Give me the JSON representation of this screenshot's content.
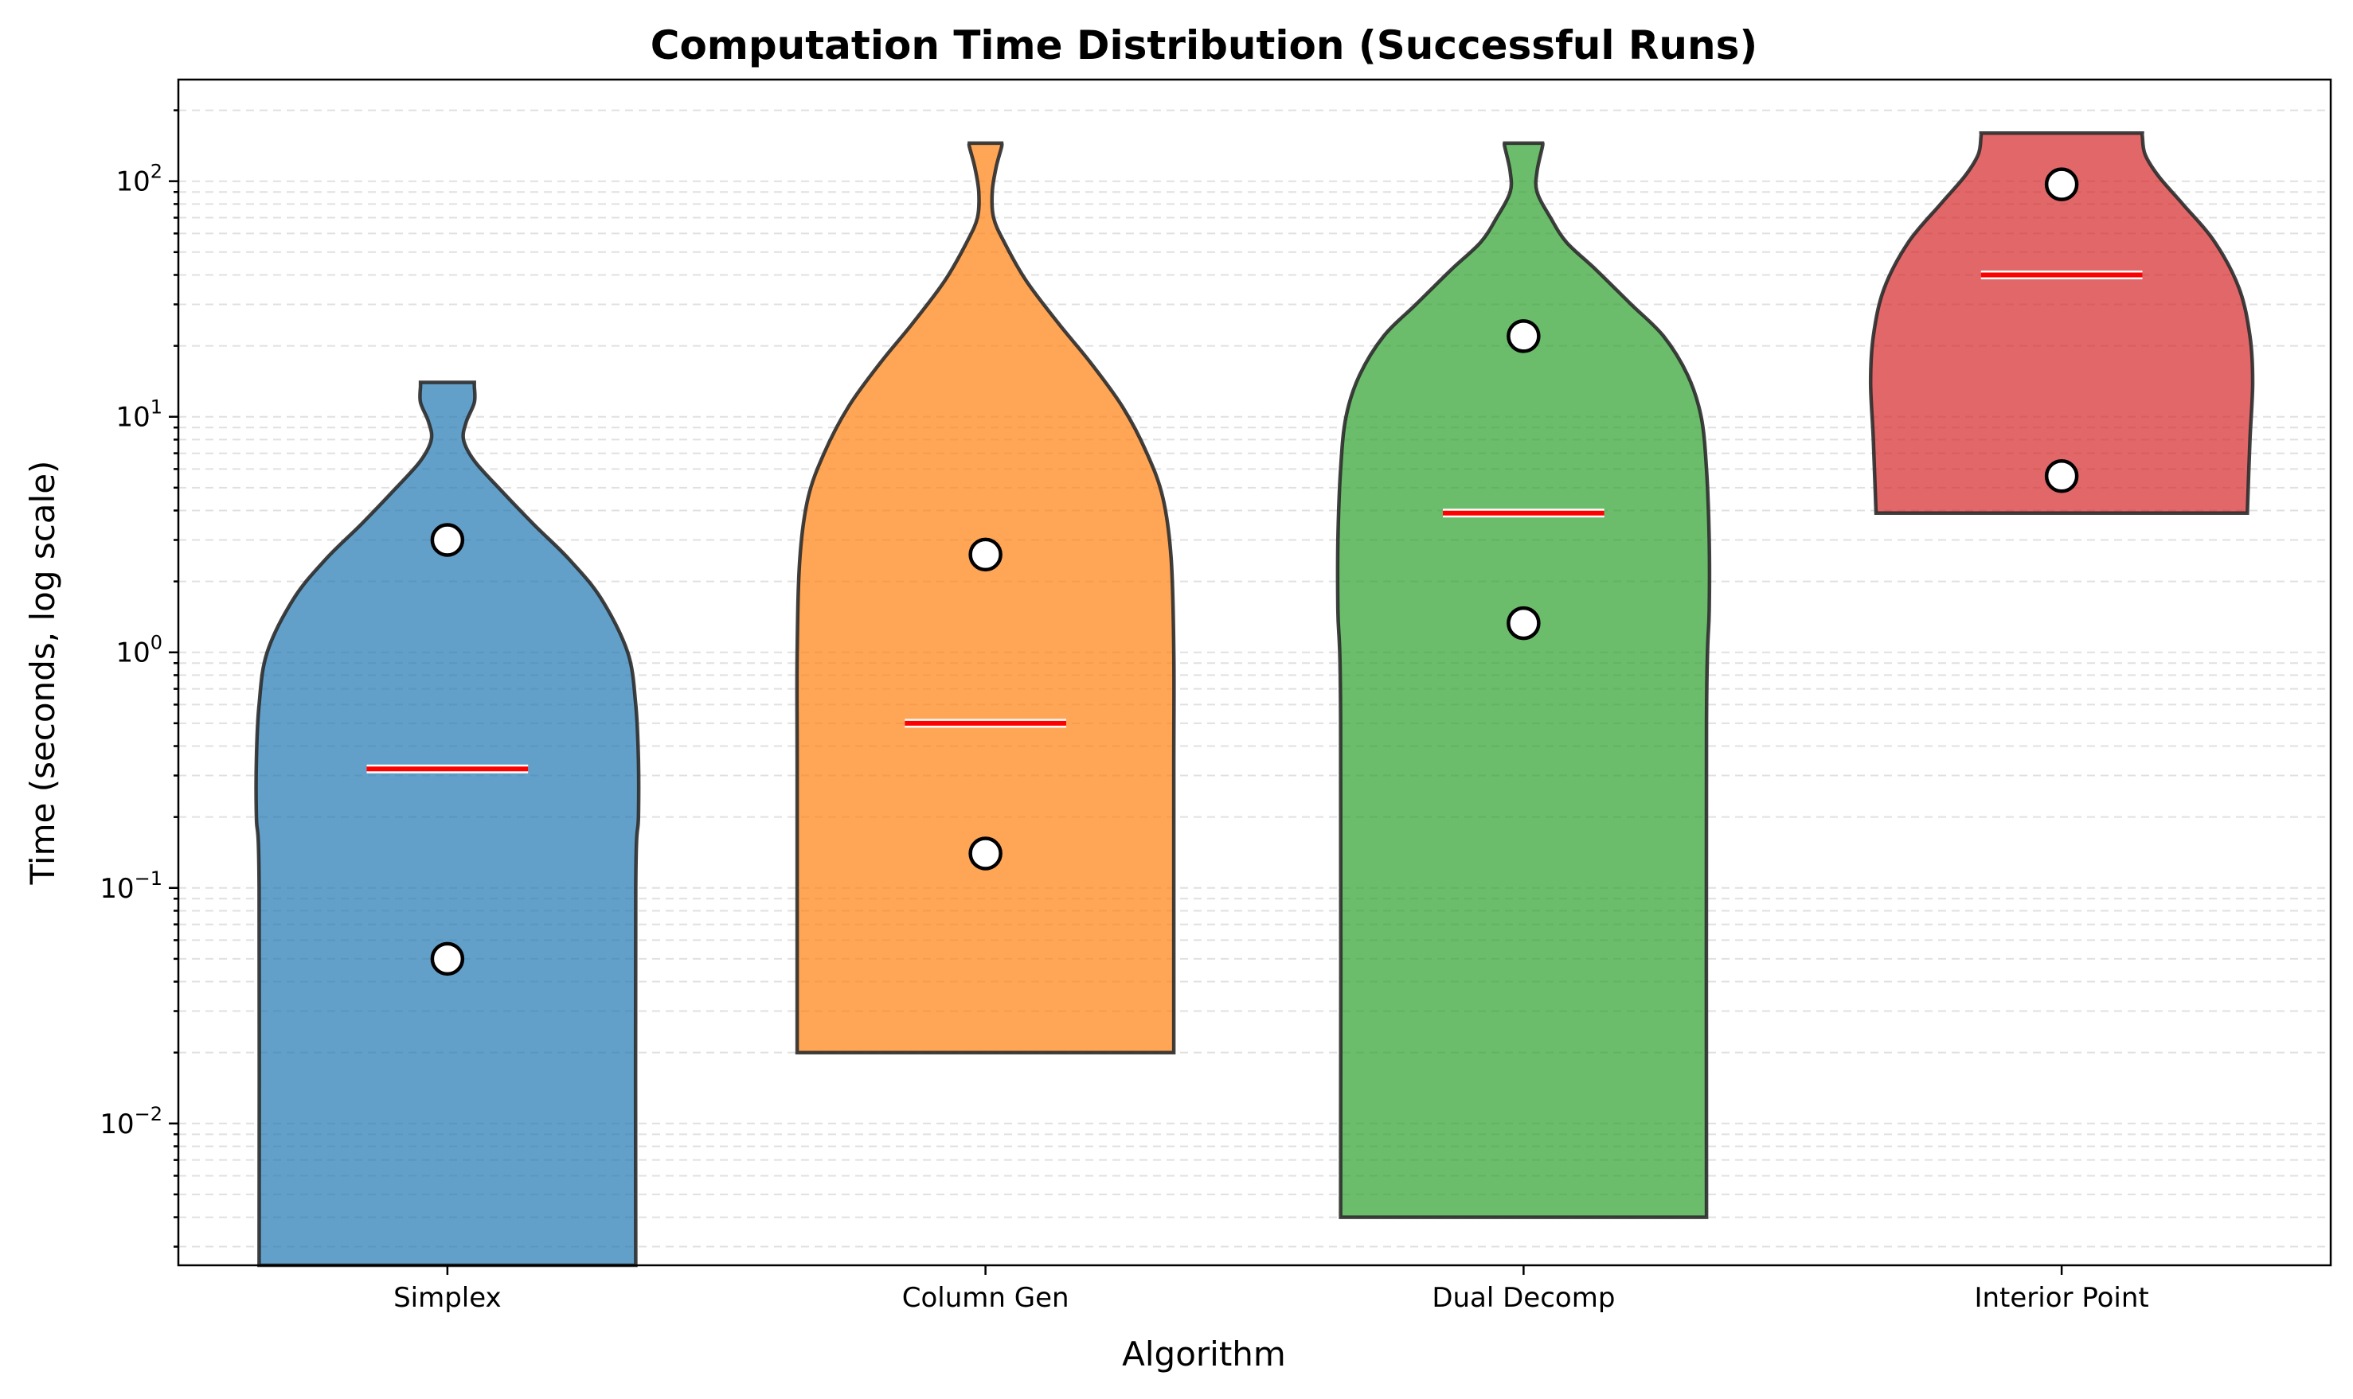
{
  "chart_data": {
    "type": "violin",
    "title": "Computation Time Distribution (Successful Runs)",
    "xlabel": "Algorithm",
    "ylabel": "Time (seconds, log scale)",
    "yscale": "log",
    "ylim": [
      0.0025,
      270
    ],
    "yticks": [
      {
        "base": "10",
        "exp": "−2",
        "value": 0.01
      },
      {
        "base": "10",
        "exp": "−1",
        "value": 0.1
      },
      {
        "base": "10",
        "exp": "0",
        "value": 1
      },
      {
        "base": "10",
        "exp": "1",
        "value": 10
      },
      {
        "base": "10",
        "exp": "2",
        "value": 100
      }
    ],
    "grid": "y-major-and-minor-dashed",
    "categories": [
      "Simplex",
      "Column Gen",
      "Dual Decomp",
      "Interior Point"
    ],
    "series": [
      {
        "color": "#1f77b4",
        "min": 0.0025,
        "max": 14,
        "median": 0.32,
        "points": [
          3.0,
          0.05
        ],
        "profile": [
          [
            0.0025,
            0.7
          ],
          [
            0.1,
            0.7
          ],
          [
            0.2,
            0.71
          ],
          [
            0.35,
            0.71
          ],
          [
            0.6,
            0.7
          ],
          [
            1.0,
            0.67
          ],
          [
            1.7,
            0.57
          ],
          [
            2.5,
            0.45
          ],
          [
            3.5,
            0.32
          ],
          [
            5.0,
            0.19
          ],
          [
            6.5,
            0.1
          ],
          [
            8.0,
            0.06
          ],
          [
            9.5,
            0.07
          ],
          [
            11.5,
            0.1
          ],
          [
            13.5,
            0.1
          ],
          [
            14,
            0.1
          ]
        ]
      },
      {
        "color": "#ff7f0e",
        "min": 0.02,
        "max": 145,
        "median": 0.5,
        "points": [
          2.6,
          0.14
        ],
        "profile": [
          [
            0.02,
            0.7
          ],
          [
            0.3,
            0.7
          ],
          [
            1.0,
            0.7
          ],
          [
            2.5,
            0.69
          ],
          [
            4.5,
            0.66
          ],
          [
            7.0,
            0.6
          ],
          [
            11,
            0.51
          ],
          [
            17,
            0.39
          ],
          [
            25,
            0.27
          ],
          [
            38,
            0.15
          ],
          [
            55,
            0.07
          ],
          [
            70,
            0.03
          ],
          [
            90,
            0.025
          ],
          [
            115,
            0.04
          ],
          [
            140,
            0.06
          ],
          [
            145,
            0.06
          ]
        ]
      },
      {
        "color": "#2ca02c",
        "min": 0.004,
        "max": 145,
        "median": 3.9,
        "points": [
          22,
          1.33
        ],
        "profile": [
          [
            0.004,
            0.68
          ],
          [
            0.5,
            0.68
          ],
          [
            1.5,
            0.69
          ],
          [
            3.0,
            0.69
          ],
          [
            6.0,
            0.68
          ],
          [
            10,
            0.66
          ],
          [
            15,
            0.61
          ],
          [
            22,
            0.52
          ],
          [
            30,
            0.4
          ],
          [
            42,
            0.27
          ],
          [
            55,
            0.16
          ],
          [
            70,
            0.1
          ],
          [
            90,
            0.05
          ],
          [
            110,
            0.05
          ],
          [
            140,
            0.07
          ],
          [
            145,
            0.07
          ]
        ]
      },
      {
        "color": "#d62728",
        "min": 3.9,
        "max": 160,
        "median": 40,
        "points": [
          97,
          5.6
        ],
        "profile": [
          [
            3.9,
            0.69
          ],
          [
            8.0,
            0.7
          ],
          [
            14,
            0.71
          ],
          [
            22,
            0.7
          ],
          [
            35,
            0.66
          ],
          [
            55,
            0.57
          ],
          [
            80,
            0.45
          ],
          [
            105,
            0.36
          ],
          [
            130,
            0.31
          ],
          [
            155,
            0.3
          ],
          [
            160,
            0.3
          ]
        ]
      }
    ]
  }
}
